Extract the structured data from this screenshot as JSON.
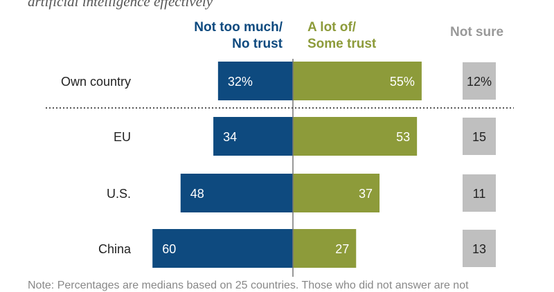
{
  "subtitle": "artificial intelligence effectively",
  "headers": {
    "negative": [
      "Not too much/",
      "No trust"
    ],
    "positive": [
      "A lot of/",
      "Some trust"
    ],
    "not_sure": "Not sure"
  },
  "colors": {
    "negative": "#0e4a7f",
    "positive": "#8d9b3a",
    "not_sure": "#bfbfbf",
    "not_sure_header": "#999999",
    "label": "#222222",
    "axis": "#777777",
    "divider": "#555555"
  },
  "chart_data": {
    "type": "bar",
    "orientation": "horizontal-diverging",
    "categories": [
      "Own country",
      "EU",
      "U.S.",
      "China"
    ],
    "series": [
      {
        "name": "Not too much/No trust",
        "values": [
          32,
          34,
          48,
          60
        ],
        "labels": [
          "32%",
          "34",
          "48",
          "60"
        ]
      },
      {
        "name": "A lot of/Some trust",
        "values": [
          55,
          53,
          37,
          27
        ],
        "labels": [
          "55%",
          "53",
          "37",
          "27"
        ]
      },
      {
        "name": "Not sure",
        "values": [
          12,
          15,
          11,
          13
        ],
        "labels": [
          "12%",
          "15",
          "11",
          "13"
        ]
      }
    ],
    "xlim": [
      -100,
      100
    ],
    "divider_after_category": "Own country"
  },
  "footnote": "Note: Percentages are medians based on 25 countries. Those who did not answer are not"
}
